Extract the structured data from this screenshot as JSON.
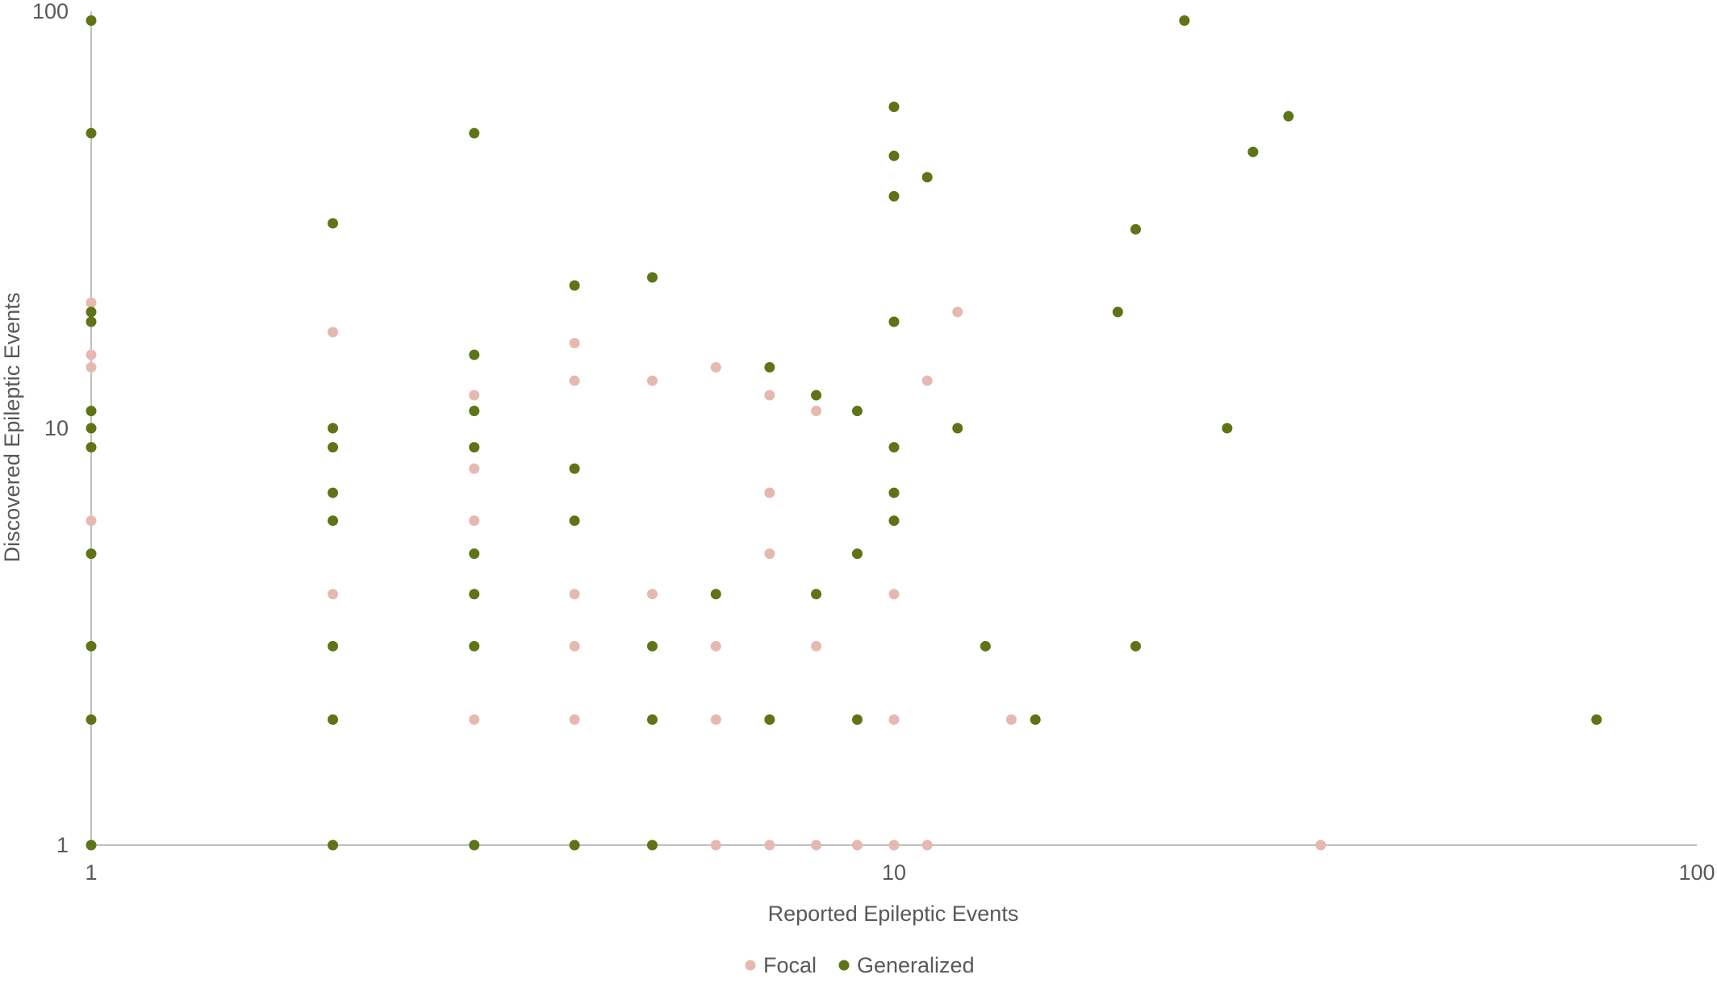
{
  "chart_data": {
    "type": "scatter",
    "title": "",
    "xlabel": "Reported Epileptic Events",
    "ylabel": "Discovered Epileptic Events",
    "xscale": "log",
    "yscale": "log",
    "xlim": [
      1,
      100
    ],
    "ylim": [
      1,
      100
    ],
    "x_ticks": [
      1,
      10,
      100
    ],
    "y_ticks": [
      1,
      10,
      100
    ],
    "x_tick_labels": [
      "1",
      "10",
      "100"
    ],
    "y_tick_labels": [
      "1",
      "10",
      "100"
    ],
    "grid": false,
    "legend_position": "bottom",
    "series": [
      {
        "name": "Focal",
        "color": "#e6b9b0",
        "points": [
          [
            1,
            20
          ],
          [
            1,
            15
          ],
          [
            1,
            14
          ],
          [
            1,
            6
          ],
          [
            2,
            17
          ],
          [
            2,
            4
          ],
          [
            3,
            12
          ],
          [
            3,
            8
          ],
          [
            3,
            6
          ],
          [
            3,
            2
          ],
          [
            4,
            16
          ],
          [
            4,
            13
          ],
          [
            4,
            4
          ],
          [
            4,
            3
          ],
          [
            4,
            2
          ],
          [
            5,
            13
          ],
          [
            5,
            4
          ],
          [
            6,
            14
          ],
          [
            6,
            3
          ],
          [
            6,
            2
          ],
          [
            6,
            1
          ],
          [
            7,
            12
          ],
          [
            7,
            7
          ],
          [
            7,
            5
          ],
          [
            7,
            1
          ],
          [
            8,
            11
          ],
          [
            8,
            3
          ],
          [
            8,
            1
          ],
          [
            9,
            1
          ],
          [
            10,
            4
          ],
          [
            10,
            2
          ],
          [
            10,
            1
          ],
          [
            11,
            13
          ],
          [
            11,
            1
          ],
          [
            12,
            19
          ],
          [
            14,
            2
          ],
          [
            34,
            1
          ]
        ]
      },
      {
        "name": "Generalized",
        "color": "#5e7416",
        "points": [
          [
            1,
            95
          ],
          [
            1,
            51
          ],
          [
            1,
            19
          ],
          [
            1,
            18
          ],
          [
            1,
            11
          ],
          [
            1,
            10
          ],
          [
            1,
            9
          ],
          [
            1,
            5
          ],
          [
            1,
            3
          ],
          [
            1,
            2
          ],
          [
            1,
            1
          ],
          [
            2,
            31
          ],
          [
            2,
            10
          ],
          [
            2,
            9
          ],
          [
            2,
            7
          ],
          [
            2,
            6
          ],
          [
            2,
            3
          ],
          [
            2,
            2
          ],
          [
            2,
            1
          ],
          [
            3,
            51
          ],
          [
            3,
            15
          ],
          [
            3,
            11
          ],
          [
            3,
            9
          ],
          [
            3,
            5
          ],
          [
            3,
            4
          ],
          [
            3,
            3
          ],
          [
            3,
            1
          ],
          [
            4,
            22
          ],
          [
            4,
            8
          ],
          [
            4,
            6
          ],
          [
            4,
            1
          ],
          [
            5,
            23
          ],
          [
            5,
            3
          ],
          [
            5,
            2
          ],
          [
            5,
            1
          ],
          [
            6,
            4
          ],
          [
            7,
            14
          ],
          [
            7,
            2
          ],
          [
            8,
            12
          ],
          [
            8,
            4
          ],
          [
            9,
            11
          ],
          [
            9,
            5
          ],
          [
            9,
            2
          ],
          [
            10,
            59
          ],
          [
            10,
            45
          ],
          [
            10,
            36
          ],
          [
            10,
            18
          ],
          [
            10,
            9
          ],
          [
            10,
            7
          ],
          [
            10,
            6
          ],
          [
            11,
            40
          ],
          [
            12,
            10
          ],
          [
            13,
            3
          ],
          [
            15,
            2
          ],
          [
            19,
            19
          ],
          [
            20,
            30
          ],
          [
            20,
            3
          ],
          [
            23,
            95
          ],
          [
            26,
            10
          ],
          [
            28,
            46
          ],
          [
            31,
            56
          ],
          [
            75,
            2
          ]
        ]
      }
    ]
  }
}
